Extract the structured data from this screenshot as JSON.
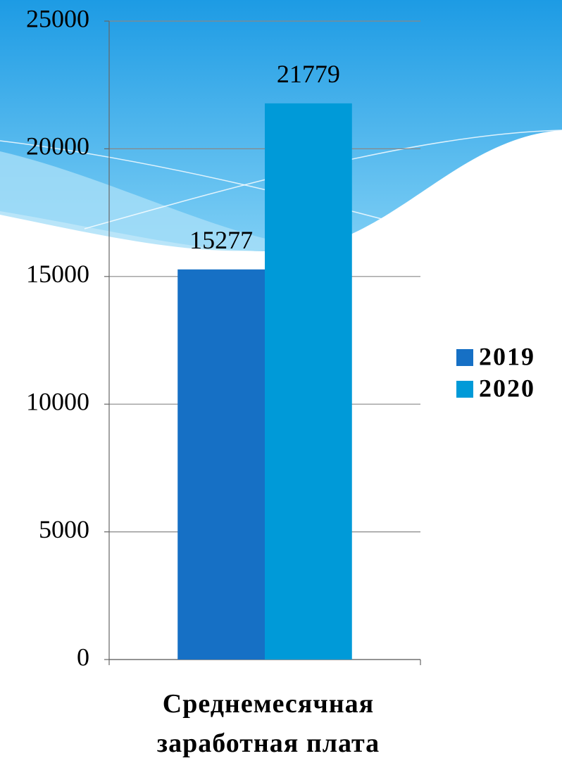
{
  "chart_data": {
    "type": "bar",
    "categories": [
      "Среднемесячная заработная плата"
    ],
    "series": [
      {
        "name": "2019",
        "color": "#1670c5",
        "values": [
          15277
        ]
      },
      {
        "name": "2020",
        "color": "#009ad8",
        "values": [
          21779
        ]
      }
    ],
    "ylim": [
      0,
      25000
    ],
    "yticks": [
      0,
      5000,
      10000,
      15000,
      20000,
      25000
    ],
    "grid": true,
    "legend": "right"
  }
}
